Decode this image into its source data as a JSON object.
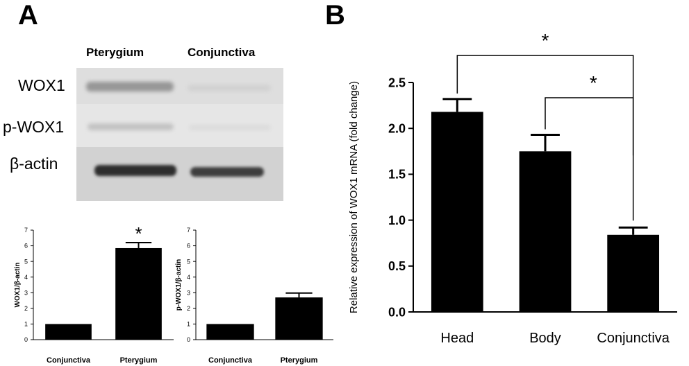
{
  "panels": {
    "a_label": "A",
    "b_label": "B"
  },
  "blot": {
    "columns": [
      "Pterygium",
      "Conjunctiva"
    ],
    "rows": [
      "WOX1",
      "p-WOX1",
      "β-actin"
    ]
  },
  "chart_data": [
    {
      "type": "bar",
      "categories": [
        "Conjunctiva",
        "Pterygium"
      ],
      "values": [
        1,
        5.85
      ],
      "errors": [
        0,
        0.35
      ],
      "ylabel": "WOX1/β-actin",
      "xlabel": "",
      "ylim": [
        0,
        7
      ],
      "yticks": [
        0,
        1,
        2,
        3,
        4,
        5,
        6,
        7
      ],
      "annotations": [
        {
          "category": "Pterygium",
          "text": "*"
        }
      ],
      "color": "#000000"
    },
    {
      "type": "bar",
      "categories": [
        "Conjunctiva",
        "Pterygium"
      ],
      "values": [
        1,
        2.7
      ],
      "errors": [
        0,
        0.28
      ],
      "ylabel": "p-WOX1/β-actin",
      "xlabel": "",
      "ylim": [
        0,
        7
      ],
      "yticks": [
        0,
        1,
        2,
        3,
        4,
        5,
        6,
        7
      ],
      "annotations": [],
      "color": "#000000"
    },
    {
      "type": "bar",
      "categories": [
        "Head",
        "Body",
        "Conjunctiva"
      ],
      "values": [
        2.18,
        1.75,
        0.84
      ],
      "errors": [
        0.14,
        0.18,
        0.08
      ],
      "ylabel": "Relative expression of WOX1 mRNA (fold change)",
      "xlabel": "",
      "ylim": [
        0,
        2.5
      ],
      "yticks": [
        "0.0",
        "0.5",
        "1.0",
        "1.5",
        "2.0",
        "2.5"
      ],
      "significance": [
        {
          "from": "Head",
          "to": "Conjunctiva",
          "label": "*"
        },
        {
          "from": "Body",
          "to": "Conjunctiva",
          "label": "*"
        }
      ],
      "color": "#000000"
    }
  ]
}
